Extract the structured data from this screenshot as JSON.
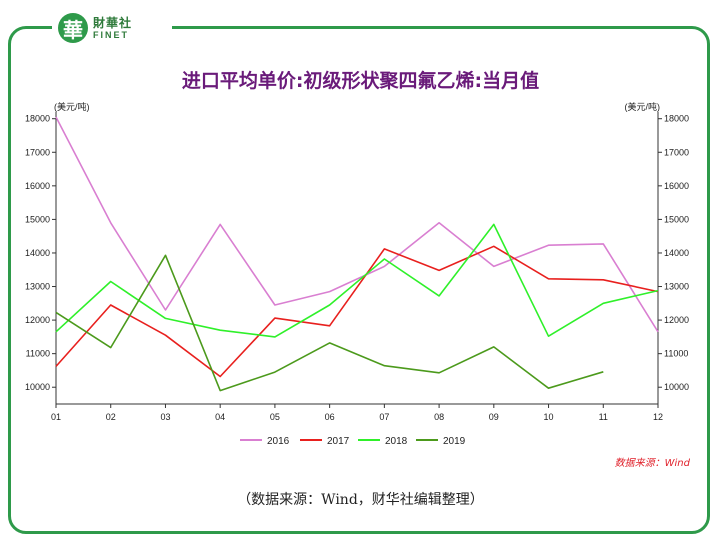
{
  "brand": {
    "cn": "財華社",
    "en": "FINET",
    "mark": "華"
  },
  "footer": "（数据来源：Wind，财华社编辑整理）",
  "chart_data": {
    "type": "line",
    "title": "进口平均单价:初级形状聚四氟乙烯:当月值",
    "ylabel_left": "(美元/吨)",
    "ylabel_right": "(美元/吨)",
    "categories": [
      "01",
      "02",
      "03",
      "04",
      "05",
      "06",
      "07",
      "08",
      "09",
      "10",
      "11",
      "12"
    ],
    "ylim": [
      9500,
      18200
    ],
    "yticks": [
      10000,
      11000,
      12000,
      13000,
      14000,
      15000,
      16000,
      17000,
      18000
    ],
    "source": "数据来源：Wind",
    "series": [
      {
        "name": "2016",
        "color": "#d97fd1",
        "values": [
          18050,
          14900,
          12300,
          14850,
          12450,
          12850,
          13600,
          14900,
          13600,
          14230,
          14270,
          11650
        ]
      },
      {
        "name": "2017",
        "color": "#e8201e",
        "values": [
          10620,
          12450,
          11550,
          10320,
          12060,
          11830,
          14120,
          13480,
          14200,
          13230,
          13200,
          12850
        ]
      },
      {
        "name": "2018",
        "color": "#2ff02a",
        "values": [
          11650,
          13150,
          12050,
          11700,
          11500,
          12450,
          13820,
          12720,
          14850,
          11520,
          12500,
          12880
        ]
      },
      {
        "name": "2019",
        "color": "#4c9a1c",
        "values": [
          12230,
          11180,
          13930,
          9900,
          10450,
          11320,
          10640,
          10430,
          11200,
          9970,
          10460,
          null
        ]
      }
    ]
  }
}
